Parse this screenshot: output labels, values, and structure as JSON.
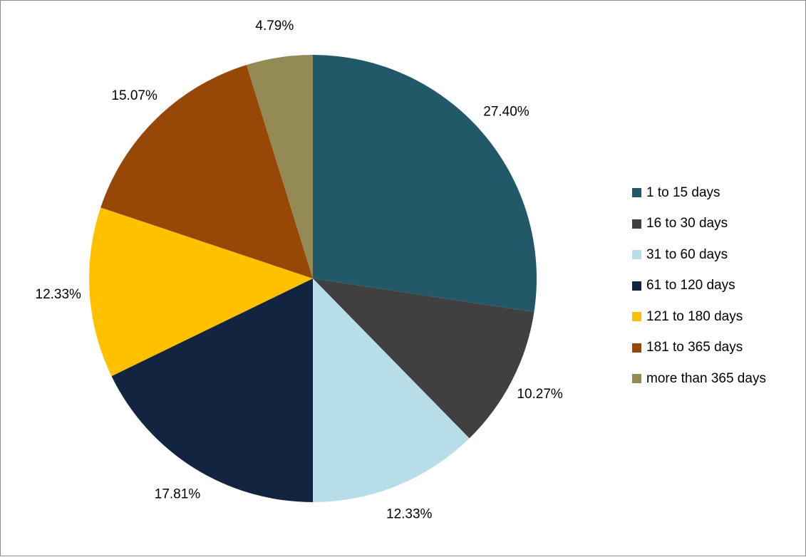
{
  "chart_data": {
    "type": "pie",
    "start_angle_deg": 0,
    "direction": "clockwise",
    "legend_position": "right",
    "slices": [
      {
        "label": "1 to 15 days",
        "value": 27.4,
        "display": "27.40%",
        "color": "#215968"
      },
      {
        "label": "16 to 30 days",
        "value": 10.27,
        "display": "10.27%",
        "color": "#404040"
      },
      {
        "label": "31 to 60 days",
        "value": 12.33,
        "display": "12.33%",
        "color": "#b7dee8"
      },
      {
        "label": "61 to 120 days",
        "value": 17.81,
        "display": "17.81%",
        "color": "#132440"
      },
      {
        "label": "121 to 180 days",
        "value": 12.33,
        "display": "12.33%",
        "color": "#ffc000"
      },
      {
        "label": "181 to 365 days",
        "value": 15.07,
        "display": "15.07%",
        "color": "#974706"
      },
      {
        "label": "more than 365 days",
        "value": 4.79,
        "display": "4.79%",
        "color": "#948a54"
      }
    ]
  }
}
